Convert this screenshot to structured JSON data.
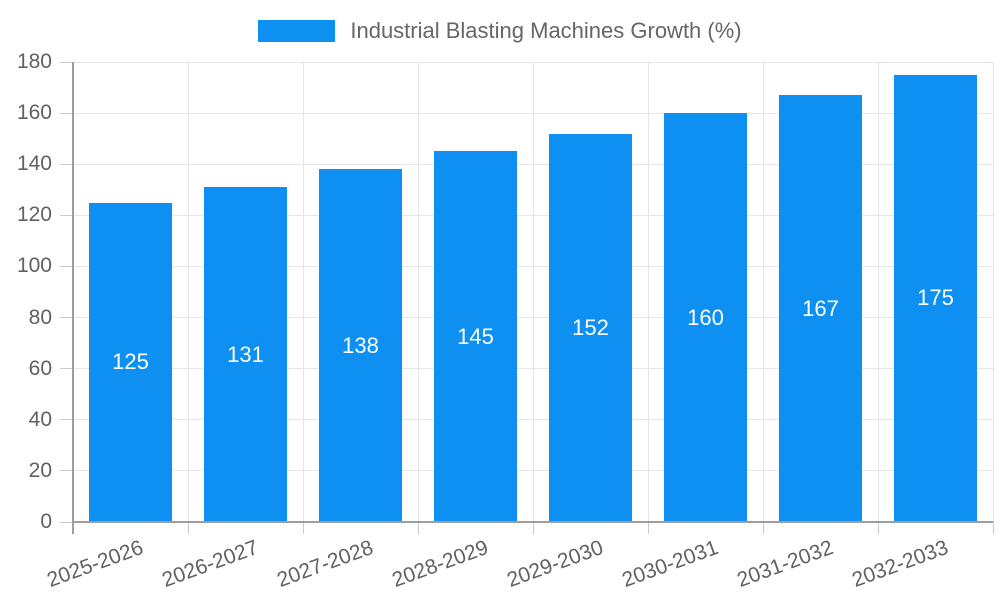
{
  "chart_data": {
    "type": "bar",
    "title": "Industrial Blasting Machines Growth (%)",
    "categories": [
      "2025-2026",
      "2026-2027",
      "2027-2028",
      "2028-2029",
      "2029-2030",
      "2030-2031",
      "2031-2032",
      "2032-2033"
    ],
    "values": [
      125,
      131,
      138,
      145,
      152,
      160,
      167,
      175
    ],
    "xlabel": "",
    "ylabel": "",
    "ylim": [
      0,
      180
    ],
    "ytick_step": 20,
    "yticks": [
      0,
      20,
      40,
      60,
      80,
      100,
      120,
      140,
      160,
      180
    ],
    "grid": true,
    "x_label_rotation_deg": -20,
    "legend": {
      "label": "Industrial Blasting Machines Growth (%)",
      "position": "top"
    },
    "colors": {
      "bar": "#0d90f1",
      "value_label": "#ffffff",
      "axis_text": "#616161",
      "legend_text": "#666666",
      "gridline": "#e6e6e6",
      "tick": "#cccccc",
      "axis_line": "#9e9e9e"
    }
  }
}
